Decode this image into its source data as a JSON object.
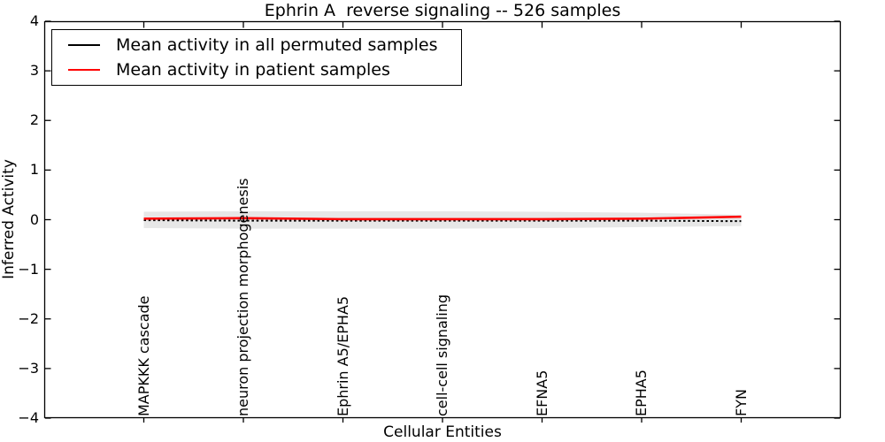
{
  "title": "Ephrin A  reverse signaling -- 526 samples",
  "axes": {
    "xlabel": "Cellular Entities",
    "ylabel": "Inferred Activity",
    "ytick_labels": [
      "4",
      "3",
      "2",
      "1",
      "0",
      "−1",
      "−2",
      "−3",
      "−4"
    ],
    "ytick_values": [
      4,
      3,
      2,
      1,
      0,
      -1,
      -2,
      -3,
      -4
    ]
  },
  "legend": {
    "items": [
      {
        "label": "Mean activity in all permuted samples",
        "color": "#000000"
      },
      {
        "label": "Mean activity in patient samples",
        "color": "#ff0000"
      }
    ]
  },
  "chart_data": {
    "type": "line",
    "title": "Ephrin A  reverse signaling -- 526 samples",
    "xlabel": "Cellular Entities",
    "ylabel": "Inferred Activity",
    "xlim": [
      0,
      8
    ],
    "ylim": [
      -4,
      4
    ],
    "grid": false,
    "legend_position": "upper left",
    "categories": [
      "MAPKKK cascade",
      "neuron projection morphogenesis",
      "Ephrin A5/EPHA5",
      "cell-cell signaling",
      "EFNA5",
      "EPHA5",
      "FYN"
    ],
    "category_x": [
      1,
      2,
      3,
      4,
      5,
      6,
      7
    ],
    "series": [
      {
        "name": "Mean activity in all permuted samples",
        "color": "#000000",
        "style": "dashed",
        "values": [
          -0.01,
          -0.02,
          -0.02,
          -0.02,
          -0.02,
          -0.02,
          -0.03
        ]
      },
      {
        "name": "Mean activity in patient samples",
        "color": "#ff0000",
        "style": "solid",
        "values": [
          0.02,
          0.03,
          0.01,
          0.01,
          0.01,
          0.02,
          0.06
        ]
      }
    ],
    "band": {
      "name": "permuted activity spread",
      "color": "#e7e7e7",
      "upper": [
        0.16,
        0.17,
        0.17,
        0.17,
        0.16,
        0.14,
        0.1
      ],
      "lower": [
        -0.17,
        -0.18,
        -0.18,
        -0.18,
        -0.17,
        -0.15,
        -0.13
      ]
    }
  }
}
